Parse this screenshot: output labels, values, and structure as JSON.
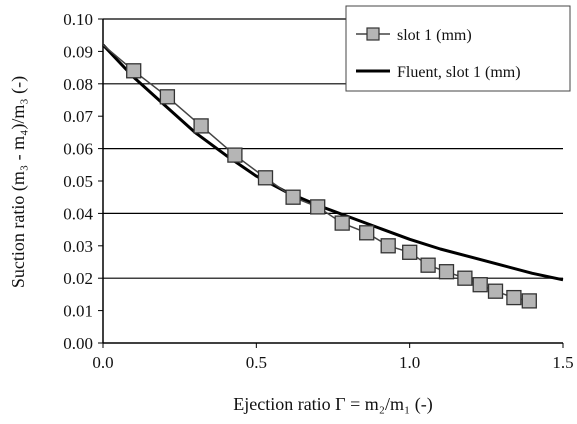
{
  "chart_data": {
    "type": "line",
    "xlabel": "Ejection ratio Γ = m₂/m₁ (-)",
    "ylabel": "Suction ratio (m₃ - m₄)/m₃ (-)",
    "xlim": [
      0,
      1.5
    ],
    "ylim": [
      0,
      0.1
    ],
    "x_ticks": [
      "0.0",
      "0.5",
      "1.0",
      "1.5"
    ],
    "y_ticks": [
      "0.00",
      "0.01",
      "0.02",
      "0.03",
      "0.04",
      "0.05",
      "0.06",
      "0.07",
      "0.08",
      "0.09",
      "0.10"
    ],
    "grid": "horizontal major at 0.02 intervals",
    "legend_position": "top-right",
    "series": [
      {
        "name": "slot 1 (mm)",
        "style": "line with gray square markers",
        "color": "#444444",
        "marker_fill": "#b5b5b5",
        "x": [
          0.1,
          0.21,
          0.32,
          0.43,
          0.53,
          0.62,
          0.7,
          0.78,
          0.86,
          0.93,
          1.0,
          1.06,
          1.12,
          1.18,
          1.23,
          1.28,
          1.34,
          1.39
        ],
        "y": [
          0.084,
          0.076,
          0.067,
          0.058,
          0.051,
          0.045,
          0.042,
          0.037,
          0.034,
          0.03,
          0.028,
          0.024,
          0.022,
          0.02,
          0.018,
          0.016,
          0.014,
          0.013
        ],
        "line_start": [
          0.0,
          0.092
        ]
      },
      {
        "name": "Fluent, slot 1 (mm)",
        "style": "thick solid line",
        "color": "#000000",
        "x": [
          0.0,
          0.1,
          0.2,
          0.3,
          0.4,
          0.5,
          0.6,
          0.7,
          0.8,
          0.9,
          1.0,
          1.1,
          1.2,
          1.3,
          1.4,
          1.5
        ],
        "y": [
          0.092,
          0.082,
          0.0735,
          0.065,
          0.058,
          0.0515,
          0.0465,
          0.0425,
          0.039,
          0.0355,
          0.032,
          0.029,
          0.0265,
          0.024,
          0.0215,
          0.0195
        ]
      }
    ]
  }
}
